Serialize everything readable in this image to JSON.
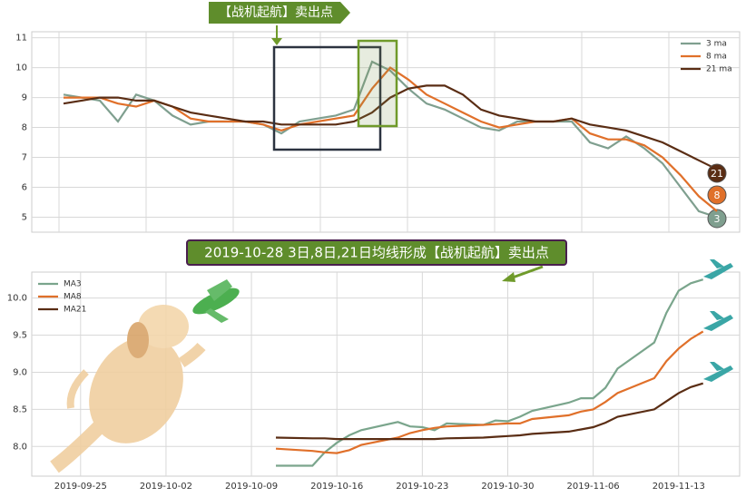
{
  "chart_data": [
    {
      "type": "line",
      "annotation": "【战机起航】卖出点",
      "ylim": [
        4.5,
        11.2
      ],
      "yticks": [
        5,
        6,
        7,
        8,
        9,
        10,
        11
      ],
      "grid": true,
      "legend": "upper right",
      "series": [
        {
          "name": "3 ma",
          "color": "#7f9f8f",
          "end_label": "3",
          "values": [
            9.1,
            9.0,
            8.9,
            8.2,
            9.1,
            8.9,
            8.4,
            8.1,
            8.2,
            8.2,
            8.2,
            8.1,
            7.8,
            8.2,
            8.3,
            8.4,
            8.6,
            10.2,
            9.9,
            9.3,
            8.8,
            8.6,
            8.3,
            8.0,
            7.9,
            8.2,
            8.2,
            8.2,
            8.2,
            7.5,
            7.3,
            7.7,
            7.3,
            6.8,
            6.0,
            5.2,
            5.0
          ]
        },
        {
          "name": "8 ma",
          "color": "#e0702a",
          "end_label": "8",
          "values": [
            9.0,
            9.0,
            9.0,
            8.8,
            8.7,
            8.9,
            8.7,
            8.3,
            8.2,
            8.2,
            8.2,
            8.1,
            7.9,
            8.1,
            8.2,
            8.3,
            8.4,
            9.3,
            10.0,
            9.6,
            9.1,
            8.8,
            8.5,
            8.2,
            8.0,
            8.1,
            8.2,
            8.2,
            8.3,
            7.8,
            7.6,
            7.6,
            7.4,
            7.0,
            6.4,
            5.7,
            5.2
          ]
        },
        {
          "name": "21 ma",
          "color": "#5a2d14",
          "end_label": "21",
          "values": [
            8.8,
            8.9,
            9.0,
            9.0,
            8.9,
            8.9,
            8.7,
            8.5,
            8.4,
            8.3,
            8.2,
            8.2,
            8.1,
            8.1,
            8.1,
            8.1,
            8.2,
            8.5,
            9.0,
            9.3,
            9.4,
            9.4,
            9.1,
            8.6,
            8.4,
            8.3,
            8.2,
            8.2,
            8.3,
            8.1,
            8.0,
            7.9,
            7.7,
            7.5,
            7.2,
            6.9,
            6.6
          ]
        }
      ]
    },
    {
      "type": "line",
      "annotation": "2019-10-28 3日,8日,21日均线形成【战机起航】卖出点",
      "x": [
        "2019-10-11",
        "2019-10-14",
        "2019-10-15",
        "2019-10-16",
        "2019-10-17",
        "2019-10-18",
        "2019-10-21",
        "2019-10-22",
        "2019-10-23",
        "2019-10-24",
        "2019-10-25",
        "2019-10-28",
        "2019-10-29",
        "2019-10-30",
        "2019-10-31",
        "2019-11-01",
        "2019-11-04",
        "2019-11-05",
        "2019-11-06",
        "2019-11-07",
        "2019-11-08",
        "2019-11-11",
        "2019-11-12",
        "2019-11-13",
        "2019-11-14",
        "2019-11-15"
      ],
      "xlim": [
        "2019-09-21",
        "2019-11-18"
      ],
      "xticks": [
        "2019-09-25",
        "2019-10-02",
        "2019-10-09",
        "2019-10-16",
        "2019-10-23",
        "2019-10-30",
        "2019-11-06",
        "2019-11-13"
      ],
      "ylim": [
        7.6,
        10.35
      ],
      "yticks": [
        {
          "value": 8,
          "label": "8.0"
        },
        {
          "value": 8.5,
          "label": "8.5"
        },
        {
          "value": 9,
          "label": "9.0"
        },
        {
          "value": 9.5,
          "label": "9.5"
        },
        {
          "value": 10,
          "label": "10.0"
        }
      ],
      "grid": true,
      "legend": "upper left",
      "series": [
        {
          "name": "MA3",
          "color": "#7aa58c",
          "values": [
            7.74,
            7.74,
            7.92,
            8.05,
            8.15,
            8.22,
            8.33,
            8.27,
            8.26,
            8.22,
            8.31,
            8.29,
            8.35,
            8.34,
            8.4,
            8.48,
            8.59,
            8.65,
            8.65,
            8.79,
            9.05,
            9.4,
            9.8,
            10.1,
            10.2,
            10.25
          ]
        },
        {
          "name": "MA8",
          "color": "#e0702a",
          "values": [
            7.97,
            7.94,
            7.92,
            7.91,
            7.95,
            8.02,
            8.12,
            8.18,
            8.22,
            8.25,
            8.27,
            8.29,
            8.3,
            8.31,
            8.31,
            8.37,
            8.42,
            8.47,
            8.5,
            8.6,
            8.72,
            8.92,
            9.15,
            9.32,
            9.45,
            9.55
          ]
        },
        {
          "name": "MA21",
          "color": "#5a2d14",
          "values": [
            8.12,
            8.11,
            8.11,
            8.1,
            8.1,
            8.1,
            8.1,
            8.1,
            8.1,
            8.1,
            8.11,
            8.12,
            8.13,
            8.14,
            8.15,
            8.17,
            8.2,
            8.23,
            8.26,
            8.32,
            8.4,
            8.5,
            8.61,
            8.72,
            8.8,
            8.85
          ]
        }
      ]
    }
  ]
}
